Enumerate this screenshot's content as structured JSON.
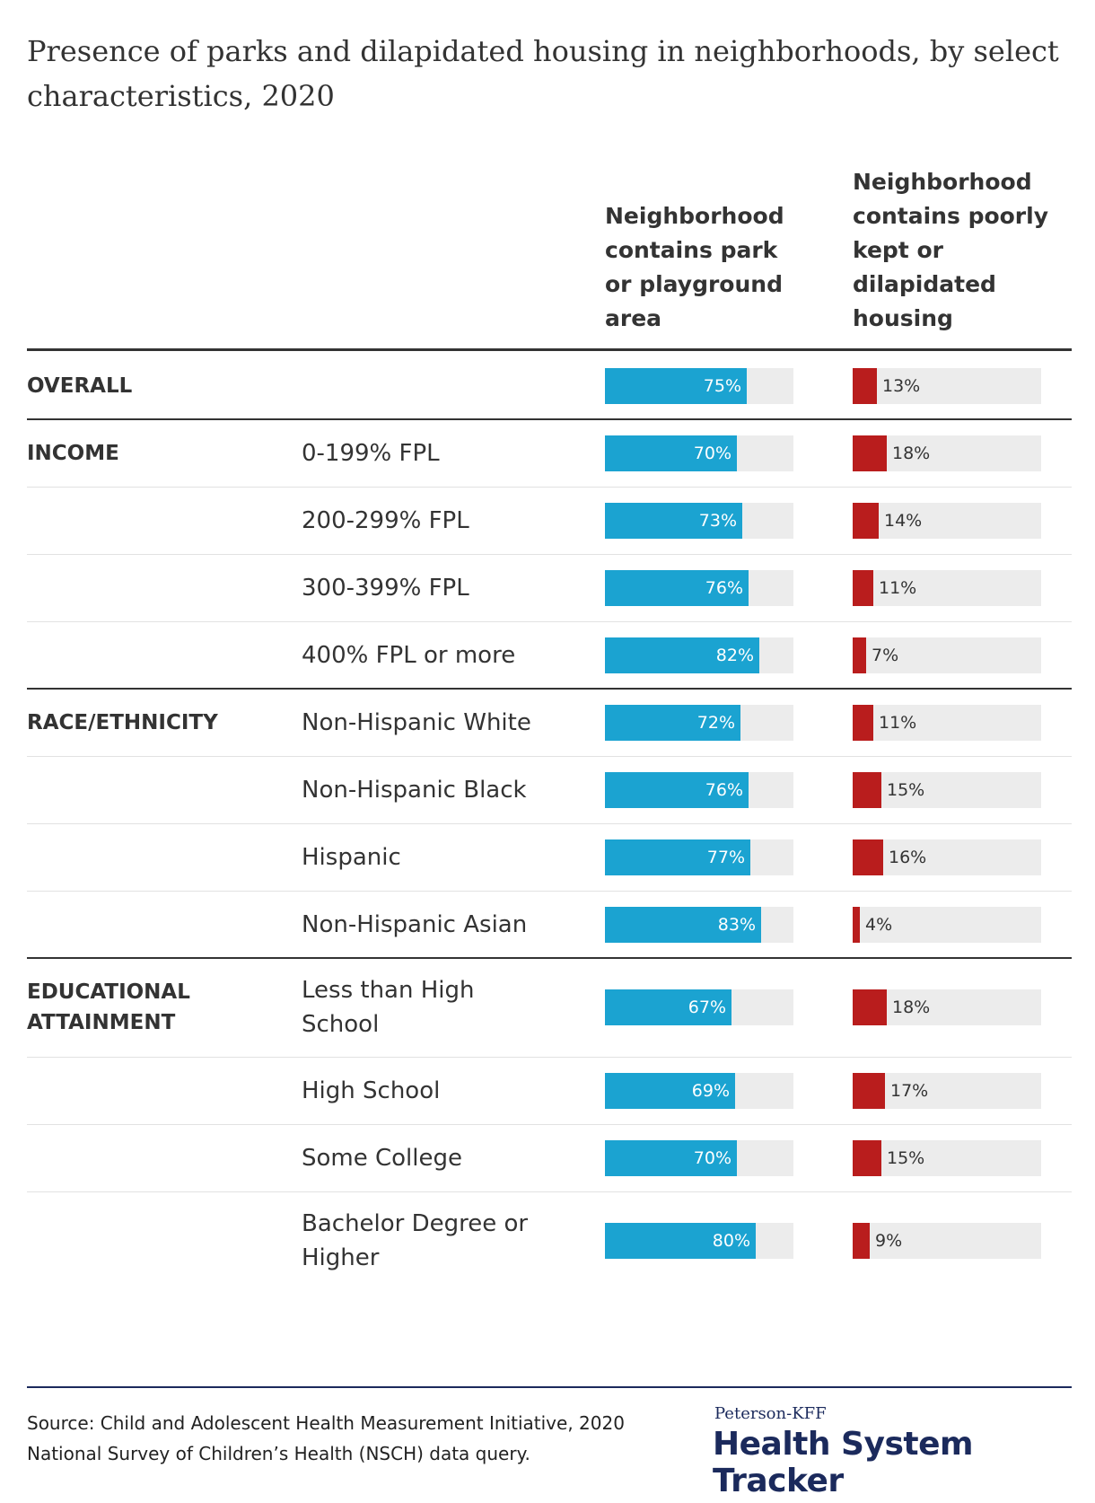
{
  "title": "Presence of parks and dilapidated housing in neighborhoods, by select characteristics, 2020",
  "columns": {
    "park": "Neighborhood contains park or playground area",
    "dilapidated": "Neighborhood contains poorly kept or dilapidated housing"
  },
  "colors": {
    "park": "#1ba3d1",
    "dilapidated": "#b91d1d",
    "track": "#ececec",
    "brand": "#1b2a5c"
  },
  "chart_data": {
    "type": "bar",
    "xlim": [
      0,
      100
    ],
    "unit": "%",
    "series": [
      {
        "name": "Neighborhood contains park or playground area",
        "key": "park"
      },
      {
        "name": "Neighborhood contains poorly kept or dilapidated housing",
        "key": "dilapidated"
      }
    ],
    "rows": [
      {
        "group": "OVERALL",
        "label": "",
        "park": 75,
        "dilapidated": 13,
        "park_label": "75%",
        "dilapidated_label": "13%"
      },
      {
        "group": "INCOME",
        "label": "0-199% FPL",
        "park": 70,
        "dilapidated": 18,
        "park_label": "70%",
        "dilapidated_label": "18%"
      },
      {
        "group": "",
        "label": "200-299% FPL",
        "park": 73,
        "dilapidated": 14,
        "park_label": "73%",
        "dilapidated_label": "14%"
      },
      {
        "group": "",
        "label": "300-399% FPL",
        "park": 76,
        "dilapidated": 11,
        "park_label": "76%",
        "dilapidated_label": "11%"
      },
      {
        "group": "",
        "label": "400% FPL or more",
        "park": 82,
        "dilapidated": 7,
        "park_label": "82%",
        "dilapidated_label": "7%"
      },
      {
        "group": "RACE/ETHNICITY",
        "label": "Non-Hispanic White",
        "park": 72,
        "dilapidated": 11,
        "park_label": "72%",
        "dilapidated_label": "11%"
      },
      {
        "group": "",
        "label": "Non-Hispanic Black",
        "park": 76,
        "dilapidated": 15,
        "park_label": "76%",
        "dilapidated_label": "15%"
      },
      {
        "group": "",
        "label": "Hispanic",
        "park": 77,
        "dilapidated": 16,
        "park_label": "77%",
        "dilapidated_label": "16%"
      },
      {
        "group": "",
        "label": "Non-Hispanic Asian",
        "park": 83,
        "dilapidated": 4,
        "park_label": "83%",
        "dilapidated_label": "4%"
      },
      {
        "group": "EDUCATIONAL ATTAINMENT",
        "label": "Less than High School",
        "park": 67,
        "dilapidated": 18,
        "park_label": "67%",
        "dilapidated_label": "18%"
      },
      {
        "group": "",
        "label": "High School",
        "park": 69,
        "dilapidated": 17,
        "park_label": "69%",
        "dilapidated_label": "17%"
      },
      {
        "group": "",
        "label": "Some College",
        "park": 70,
        "dilapidated": 15,
        "park_label": "70%",
        "dilapidated_label": "15%"
      },
      {
        "group": "",
        "label": "Bachelor Degree or Higher",
        "park": 80,
        "dilapidated": 9,
        "park_label": "80%",
        "dilapidated_label": "9%"
      }
    ]
  },
  "footer": {
    "source": "Source: Child and Adolescent Health Measurement Initiative, 2020 National Survey of Children’s Health (NSCH) data query.",
    "brand_small": "Peterson-KFF",
    "brand_large": "Health System Tracker"
  }
}
